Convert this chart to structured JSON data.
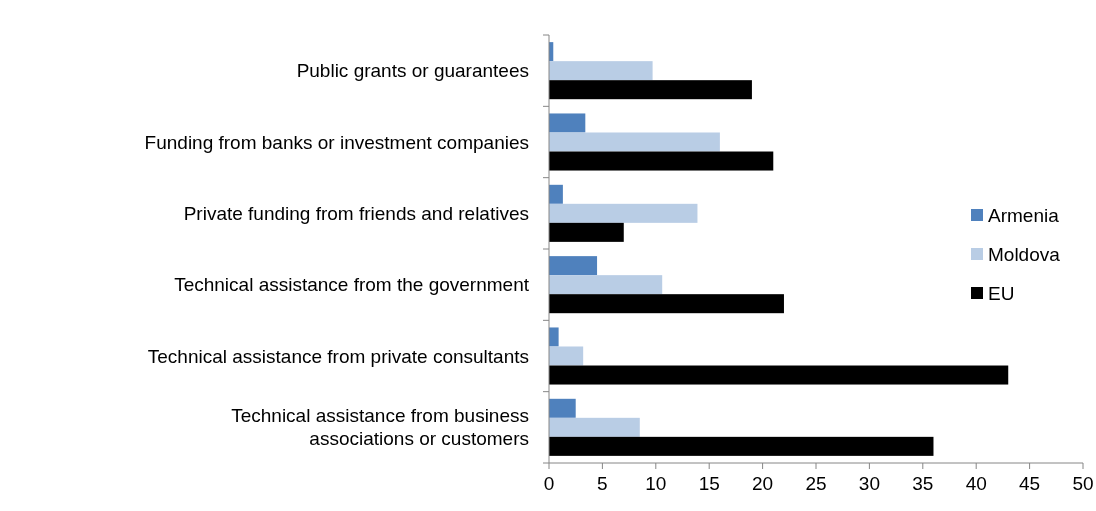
{
  "chart_data": {
    "type": "bar",
    "orientation": "horizontal",
    "categories": [
      "Public grants or guarantees",
      "Funding from banks or investment companies",
      "Private funding from friends and relatives",
      "Technical assistance from the government",
      "Technical assistance from private consultants",
      "Technical assistance from business associations or customers"
    ],
    "series": [
      {
        "name": "Armenia",
        "color": "#4f81bd",
        "values": [
          0.4,
          3.4,
          1.3,
          4.5,
          0.9,
          2.5
        ]
      },
      {
        "name": "Moldova",
        "color": "#b9cde5",
        "values": [
          9.7,
          16,
          13.9,
          10.6,
          3.2,
          8.5
        ]
      },
      {
        "name": "EU",
        "color": "#000000",
        "values": [
          19,
          21,
          7,
          22,
          43,
          36
        ]
      }
    ],
    "xlim": [
      0,
      50
    ],
    "xticks": [
      0,
      5,
      10,
      15,
      20,
      25,
      30,
      35,
      40,
      45,
      50
    ],
    "grid": false,
    "legend": "right"
  }
}
